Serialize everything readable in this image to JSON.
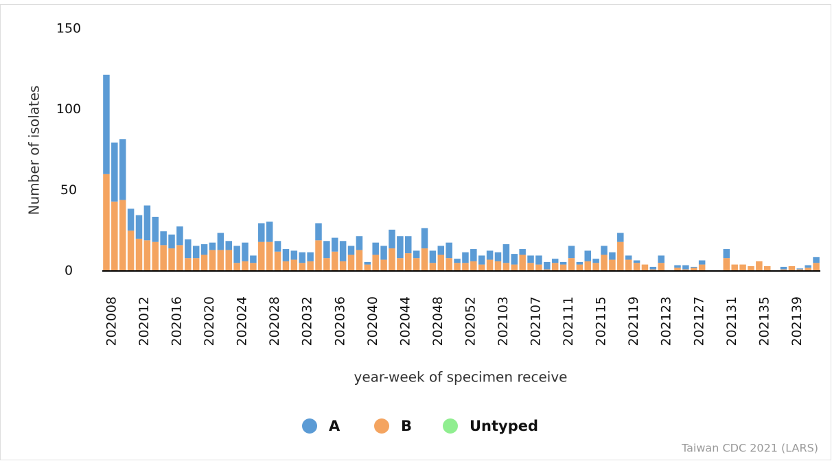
{
  "chart_data": {
    "type": "stacked-bar",
    "x_label": "year-week of specimen receive",
    "y_label": "Number of isolates",
    "source": "Taiwan CDC 2021 (LARS)",
    "ylim": [
      0,
      150
    ],
    "yticks": [
      0,
      50,
      100,
      150
    ],
    "grid": false,
    "legend": "bottom",
    "categories": [
      "202008",
      null,
      null,
      null,
      "202012",
      null,
      null,
      null,
      "202016",
      null,
      null,
      null,
      "202020",
      null,
      null,
      null,
      "202024",
      null,
      null,
      null,
      "202028",
      null,
      null,
      null,
      "202032",
      null,
      null,
      null,
      "202036",
      null,
      null,
      null,
      "202040",
      null,
      null,
      null,
      "202044",
      null,
      null,
      null,
      "202048",
      null,
      null,
      null,
      "202052",
      null,
      null,
      null,
      "202103",
      null,
      null,
      null,
      "202107",
      null,
      null,
      null,
      "202111",
      null,
      null,
      null,
      "202115",
      null,
      null,
      null,
      "202119",
      null,
      null,
      null,
      "202123",
      null,
      null,
      null,
      "202127",
      null,
      null,
      null,
      "202131",
      null,
      null,
      null,
      "202135",
      null,
      null,
      null,
      "202139",
      null,
      null,
      null
    ],
    "series": [
      {
        "name": "A",
        "color": "#5b9bd5",
        "values": [
          62,
          37,
          38,
          14,
          15,
          22,
          16,
          9,
          9,
          12,
          12,
          8,
          7,
          5,
          11,
          6,
          11,
          12,
          5,
          12,
          13,
          7,
          8,
          6,
          7,
          6,
          11,
          11,
          9,
          13,
          6,
          9,
          2,
          8,
          9,
          12,
          14,
          11,
          5,
          13,
          8,
          6,
          10,
          3,
          7,
          8,
          6,
          6,
          6,
          12,
          7,
          4,
          5,
          6,
          5,
          3,
          2,
          8,
          2,
          7,
          3,
          6,
          5,
          6,
          3,
          2,
          0,
          2,
          5,
          0,
          2,
          3,
          1,
          3,
          0,
          0,
          6,
          0,
          0,
          0,
          0,
          0,
          0,
          2,
          0,
          1,
          2,
          4
        ]
      },
      {
        "name": "B",
        "color": "#f4a460",
        "values": [
          60,
          43,
          44,
          25,
          20,
          19,
          18,
          16,
          14,
          16,
          8,
          8,
          10,
          13,
          13,
          13,
          5,
          6,
          5,
          18,
          18,
          12,
          6,
          7,
          5,
          6,
          19,
          8,
          12,
          6,
          10,
          13,
          4,
          10,
          7,
          14,
          8,
          11,
          8,
          14,
          5,
          10,
          8,
          5,
          5,
          6,
          4,
          7,
          6,
          5,
          4,
          10,
          5,
          4,
          1,
          5,
          4,
          8,
          4,
          6,
          5,
          10,
          7,
          18,
          7,
          5,
          4,
          1,
          5,
          0,
          2,
          1,
          2,
          4,
          0,
          0,
          8,
          4,
          4,
          3,
          6,
          3,
          0,
          1,
          3,
          1,
          2,
          5
        ]
      },
      {
        "name": "Untyped",
        "color": "#90ee90",
        "values": [
          0,
          0,
          0,
          0,
          0,
          0,
          0,
          0,
          0,
          0,
          0,
          0,
          0,
          0,
          0,
          0,
          0,
          0,
          0,
          0,
          0,
          0,
          0,
          0,
          0,
          0,
          0,
          0,
          0,
          0,
          0,
          0,
          0,
          0,
          0,
          0,
          0,
          0,
          0,
          0,
          0,
          0,
          0,
          0,
          0,
          0,
          0,
          0,
          0,
          0,
          0,
          0,
          0,
          0,
          0,
          0,
          0,
          0,
          0,
          0,
          0,
          0,
          0,
          0,
          0,
          0,
          0,
          0,
          0,
          0,
          0,
          0,
          0,
          0,
          0,
          0,
          0,
          0,
          0,
          0,
          0,
          0,
          0,
          0,
          0,
          0,
          0,
          0
        ]
      }
    ]
  }
}
